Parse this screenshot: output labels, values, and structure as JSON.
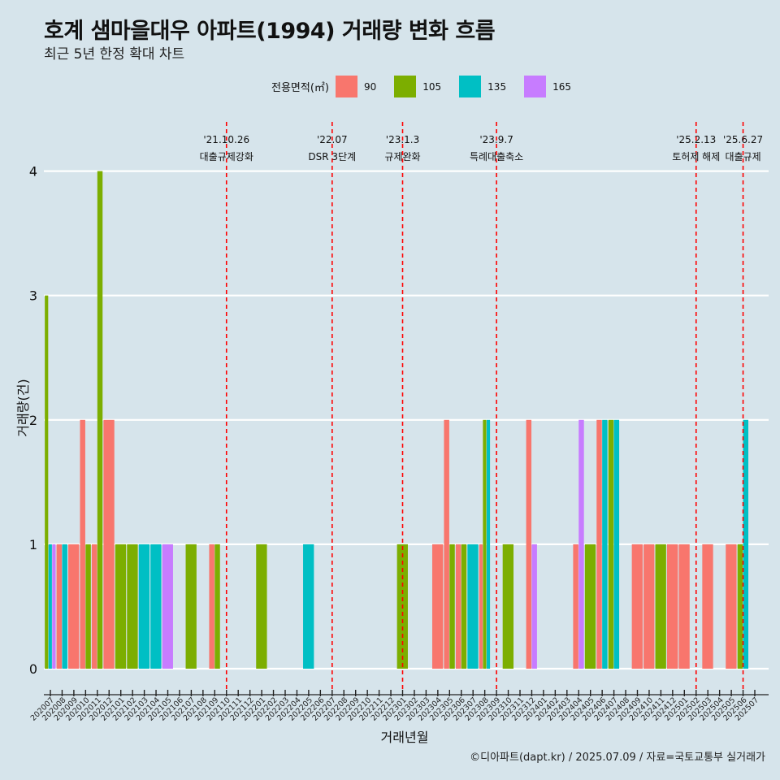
{
  "title": "호계 샘마을대우 아파트(1994) 거래량 변화 흐름",
  "subtitle": "최근 5년 한정 확대 차트",
  "caption": "©디아파트(dapt.kr) / 2025.07.09 / 자료=국토교통부 실거래가",
  "legend": {
    "title": "전용면적(㎡)",
    "items": [
      {
        "label": "90",
        "color": "#f8766d"
      },
      {
        "label": "105",
        "color": "#7cae00"
      },
      {
        "label": "135",
        "color": "#00bfc4"
      },
      {
        "label": "165",
        "color": "#c77cff"
      }
    ]
  },
  "chart_data": {
    "type": "bar",
    "xlabel": "거래년월",
    "ylabel": "거래량(건)",
    "ylim": [
      0,
      4
    ],
    "yticks": [
      0,
      1,
      2,
      3,
      4
    ],
    "categories": [
      "202007",
      "202008",
      "202009",
      "202010",
      "202011",
      "202012",
      "202101",
      "202102",
      "202103",
      "202104",
      "202105",
      "202106",
      "202107",
      "202108",
      "202109",
      "202110",
      "202111",
      "202112",
      "202201",
      "202202",
      "202203",
      "202204",
      "202205",
      "202206",
      "202207",
      "202208",
      "202209",
      "202210",
      "202211",
      "202212",
      "202301",
      "202302",
      "202303",
      "202304",
      "202305",
      "202306",
      "202307",
      "202308",
      "202309",
      "202310",
      "202311",
      "202312",
      "202401",
      "202402",
      "202403",
      "202404",
      "202405",
      "202406",
      "202407",
      "202408",
      "202409",
      "202410",
      "202411",
      "202412",
      "202501",
      "202502",
      "202503",
      "202504",
      "202505",
      "202506",
      "202507"
    ],
    "series": [
      {
        "name": "90",
        "color": "#f8766d",
        "points": [
          [
            "202008",
            1
          ],
          [
            "202009",
            1
          ],
          [
            "202010",
            2
          ],
          [
            "202011",
            1
          ],
          [
            "202012",
            2
          ],
          [
            "202109",
            1
          ],
          [
            "202304",
            1
          ],
          [
            "202305",
            2
          ],
          [
            "202306",
            1
          ],
          [
            "202308",
            1
          ],
          [
            "202312",
            2
          ],
          [
            "202404",
            1
          ],
          [
            "202406",
            2
          ],
          [
            "202409",
            1
          ],
          [
            "202410",
            1
          ],
          [
            "202412",
            1
          ],
          [
            "202501",
            1
          ],
          [
            "202503",
            1
          ],
          [
            "202505",
            1
          ]
        ]
      },
      {
        "name": "105",
        "color": "#7cae00",
        "points": [
          [
            "202007",
            3
          ],
          [
            "202010",
            1
          ],
          [
            "202011",
            4
          ],
          [
            "202101",
            1
          ],
          [
            "202102",
            1
          ],
          [
            "202107",
            1
          ],
          [
            "202109",
            1
          ],
          [
            "202201",
            1
          ],
          [
            "202301",
            1
          ],
          [
            "202305",
            1
          ],
          [
            "202306",
            1
          ],
          [
            "202308",
            2
          ],
          [
            "202310",
            1
          ],
          [
            "202405",
            1
          ],
          [
            "202407",
            2
          ],
          [
            "202411",
            1
          ],
          [
            "202506",
            1
          ]
        ]
      },
      {
        "name": "135",
        "color": "#00bfc4",
        "points": [
          [
            "202007",
            1
          ],
          [
            "202008",
            1
          ],
          [
            "202103",
            1
          ],
          [
            "202104",
            1
          ],
          [
            "202205",
            1
          ],
          [
            "202307",
            1
          ],
          [
            "202308",
            2
          ],
          [
            "202406",
            2
          ],
          [
            "202407",
            2
          ],
          [
            "202506",
            2
          ]
        ]
      },
      {
        "name": "165",
        "color": "#c77cff",
        "points": [
          [
            "202007",
            1
          ],
          [
            "202105",
            1
          ],
          [
            "202312",
            1
          ],
          [
            "202404",
            2
          ]
        ]
      }
    ],
    "annotations": [
      {
        "x": "202110",
        "date": "'21.10.26",
        "label": "대출규제강화"
      },
      {
        "x": "202207",
        "date": "'22.07",
        "label": "DSR 3단계"
      },
      {
        "x": "202301",
        "date": "'23.1.3",
        "label": "규제완화"
      },
      {
        "x": "202309",
        "date": "'23.9.7",
        "label": "특례대출축소"
      },
      {
        "x": "202502",
        "date": "'25.2.13",
        "label": "토허제 해제"
      },
      {
        "x": "202506",
        "date": "'25.6.27",
        "label": "대출규제"
      }
    ]
  }
}
